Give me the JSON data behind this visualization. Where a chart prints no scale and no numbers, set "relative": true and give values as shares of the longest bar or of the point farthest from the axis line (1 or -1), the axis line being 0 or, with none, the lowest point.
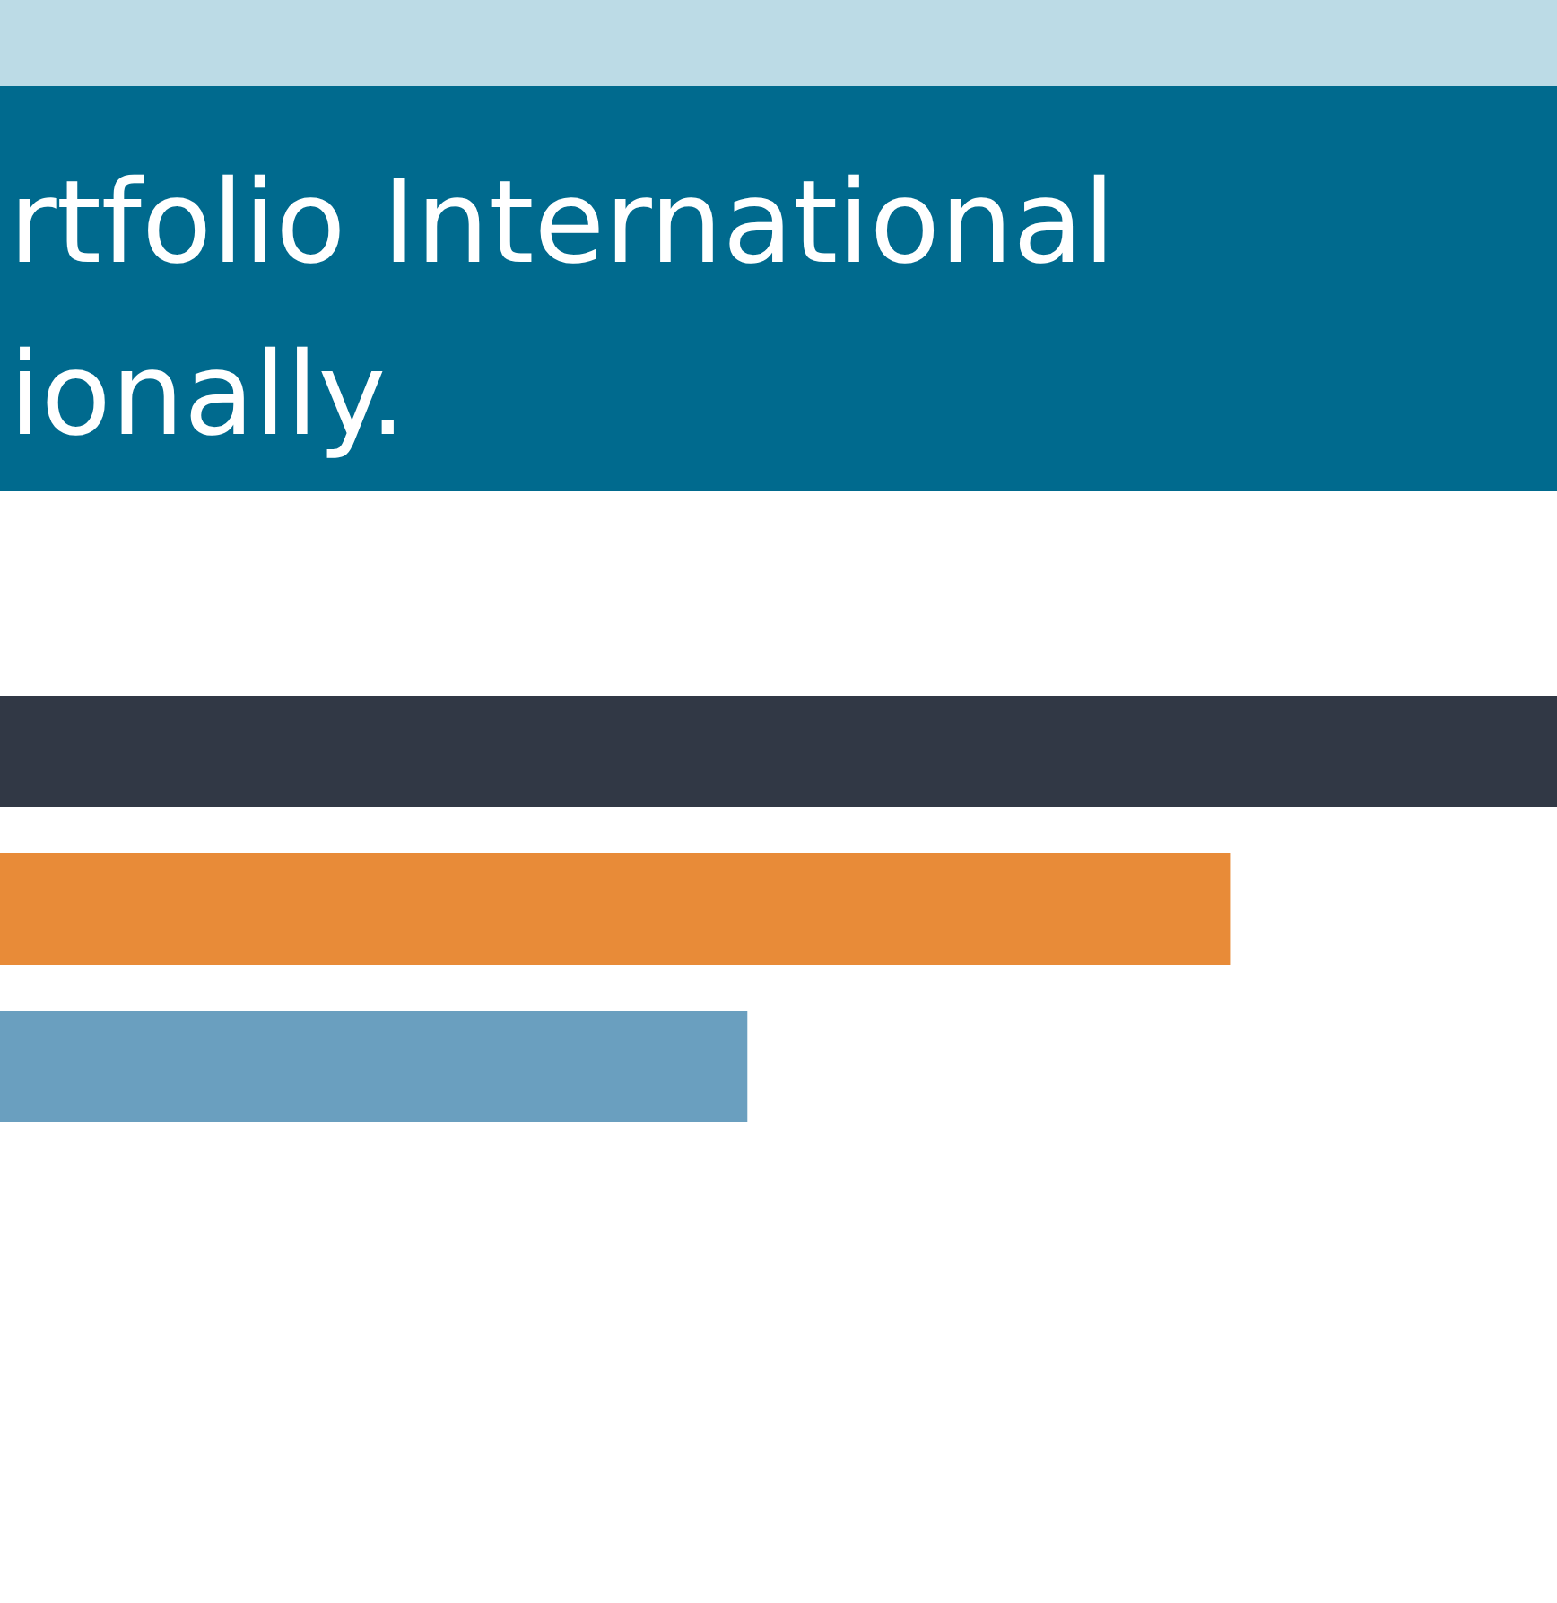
{
  "chart_data": {
    "type": "bar",
    "orientation": "horizontal",
    "relative": true,
    "title": "rtfolio International\nionally.",
    "categories": [
      null,
      null,
      null
    ],
    "series": [
      {
        "colors": [
          "#313845",
          "#e88b38",
          "#6a9fbf"
        ],
        "values": [
          1,
          0.79,
          0.48
        ]
      }
    ]
  }
}
